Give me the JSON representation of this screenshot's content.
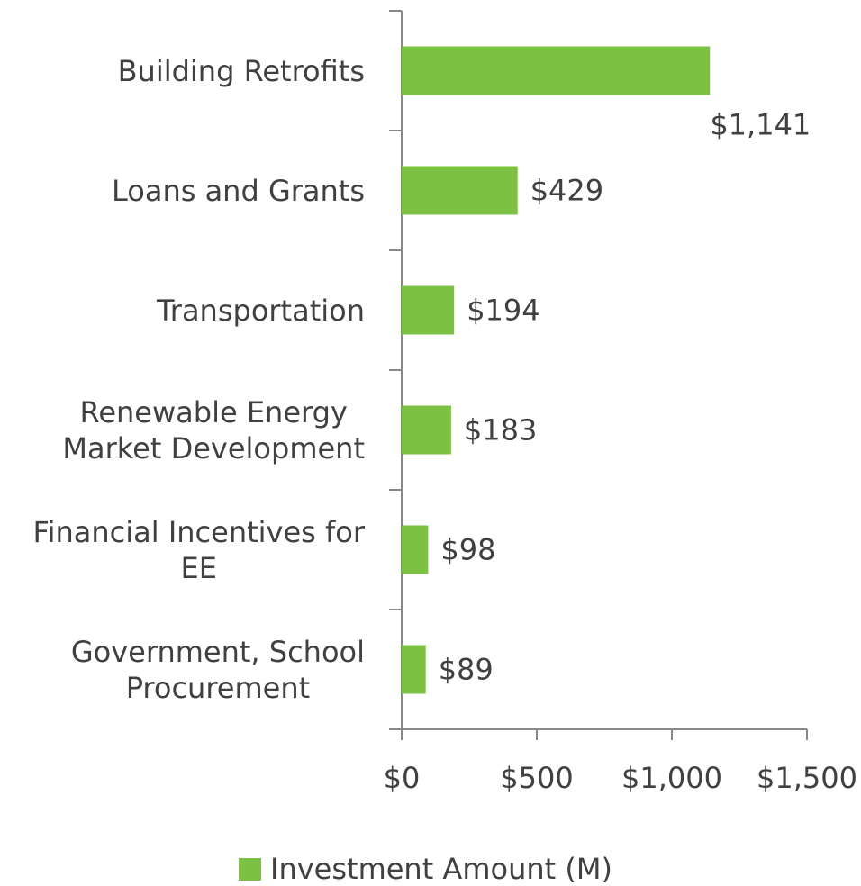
{
  "chart_data": {
    "type": "bar",
    "orientation": "horizontal",
    "categories": [
      "Building Retrofits",
      "Loans and Grants",
      "Transportation",
      "Renewable Energy\nMarket Development",
      "Financial Incentives for\nEE",
      "Government, School\nProcurement"
    ],
    "series": [
      {
        "name": "Investment Amount (M)",
        "color": "#7dc142",
        "values": [
          1141,
          429,
          194,
          183,
          98,
          89
        ],
        "value_labels": [
          "$1,141",
          "$429",
          "$194",
          "$183",
          "$98",
          "$89"
        ]
      }
    ],
    "xlim": [
      0,
      1500
    ],
    "xticks": [
      {
        "value": 0,
        "label": "$0"
      },
      {
        "value": 500,
        "label": "$500"
      },
      {
        "value": 1000,
        "label": "$1,000"
      },
      {
        "value": 1500,
        "label": "$1,500"
      }
    ],
    "legend": "bottom"
  }
}
